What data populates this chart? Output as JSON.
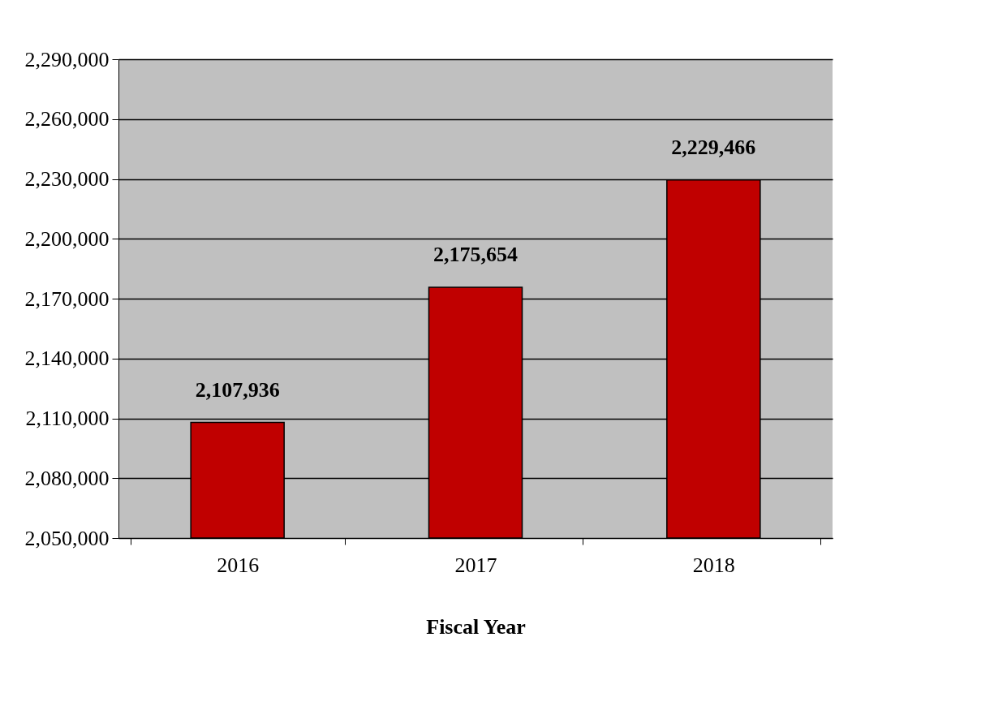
{
  "chart_data": {
    "type": "bar",
    "xlabel": "Fiscal Year",
    "categories": [
      "2016",
      "2017",
      "2018"
    ],
    "values": [
      2107936,
      2175654,
      2229466
    ],
    "value_labels": [
      "2,107,936",
      "2,175,654",
      "2,229,466"
    ],
    "color": "#c00000",
    "ylim": [
      2050000,
      2290000
    ],
    "yticks": [
      {
        "value": 2050000,
        "label": "2,050,000"
      },
      {
        "value": 2080000,
        "label": "2,080,000"
      },
      {
        "value": 2110000,
        "label": "2,110,000"
      },
      {
        "value": 2140000,
        "label": "2,140,000"
      },
      {
        "value": 2170000,
        "label": "2,170,000"
      },
      {
        "value": 2200000,
        "label": "2,200,000"
      },
      {
        "value": 2230000,
        "label": "2,230,000"
      },
      {
        "value": 2260000,
        "label": "2,260,000"
      },
      {
        "value": 2290000,
        "label": "2,290,000"
      }
    ],
    "grid": "y",
    "legend": false
  }
}
